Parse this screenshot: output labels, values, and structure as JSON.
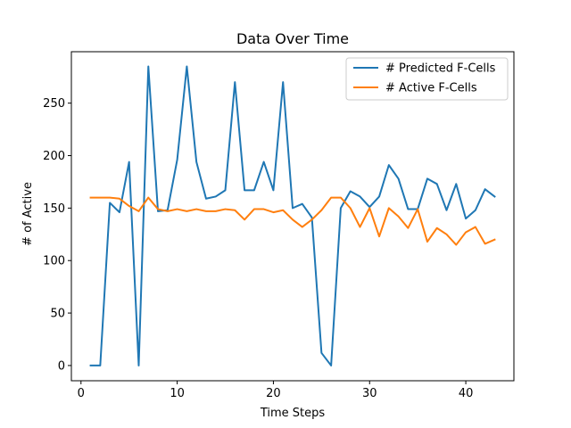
{
  "chart_data": {
    "type": "line",
    "title": "Data Over Time",
    "xlabel": "Time Steps",
    "ylabel": "# of Active",
    "xlim": [
      -1,
      45
    ],
    "ylim": [
      -14.5,
      299
    ],
    "xticks": [
      0,
      10,
      20,
      30,
      40
    ],
    "yticks": [
      0,
      50,
      100,
      150,
      200,
      250
    ],
    "grid": false,
    "legend_position": "top-right",
    "x": [
      1,
      2,
      3,
      4,
      5,
      6,
      7,
      8,
      9,
      10,
      11,
      12,
      13,
      14,
      15,
      16,
      17,
      18,
      19,
      20,
      21,
      22,
      23,
      24,
      25,
      26,
      27,
      28,
      29,
      30,
      31,
      32,
      33,
      34,
      35,
      36,
      37,
      38,
      39,
      40,
      41,
      42,
      43
    ],
    "series": [
      {
        "name": "# Predicted F-Cells",
        "color": "#1f77b4",
        "values": [
          0,
          0,
          155,
          146,
          194,
          0,
          285,
          147,
          148,
          196,
          285,
          194,
          159,
          161,
          167,
          270,
          167,
          167,
          194,
          167,
          270,
          150,
          154,
          141,
          12,
          0,
          150,
          166,
          161,
          151,
          161,
          191,
          178,
          149,
          149,
          178,
          173,
          148,
          173,
          140,
          148,
          168,
          161
        ]
      },
      {
        "name": "# Active F-Cells",
        "color": "#ff7f0e",
        "values": [
          160,
          160,
          160,
          159,
          152,
          147,
          160,
          149,
          147,
          149,
          147,
          149,
          147,
          147,
          149,
          148,
          139,
          149,
          149,
          146,
          148,
          139,
          132,
          139,
          148,
          160,
          160,
          150,
          132,
          150,
          123,
          150,
          142,
          131,
          149,
          118,
          131,
          125,
          115,
          127,
          132,
          116,
          120
        ]
      }
    ]
  }
}
